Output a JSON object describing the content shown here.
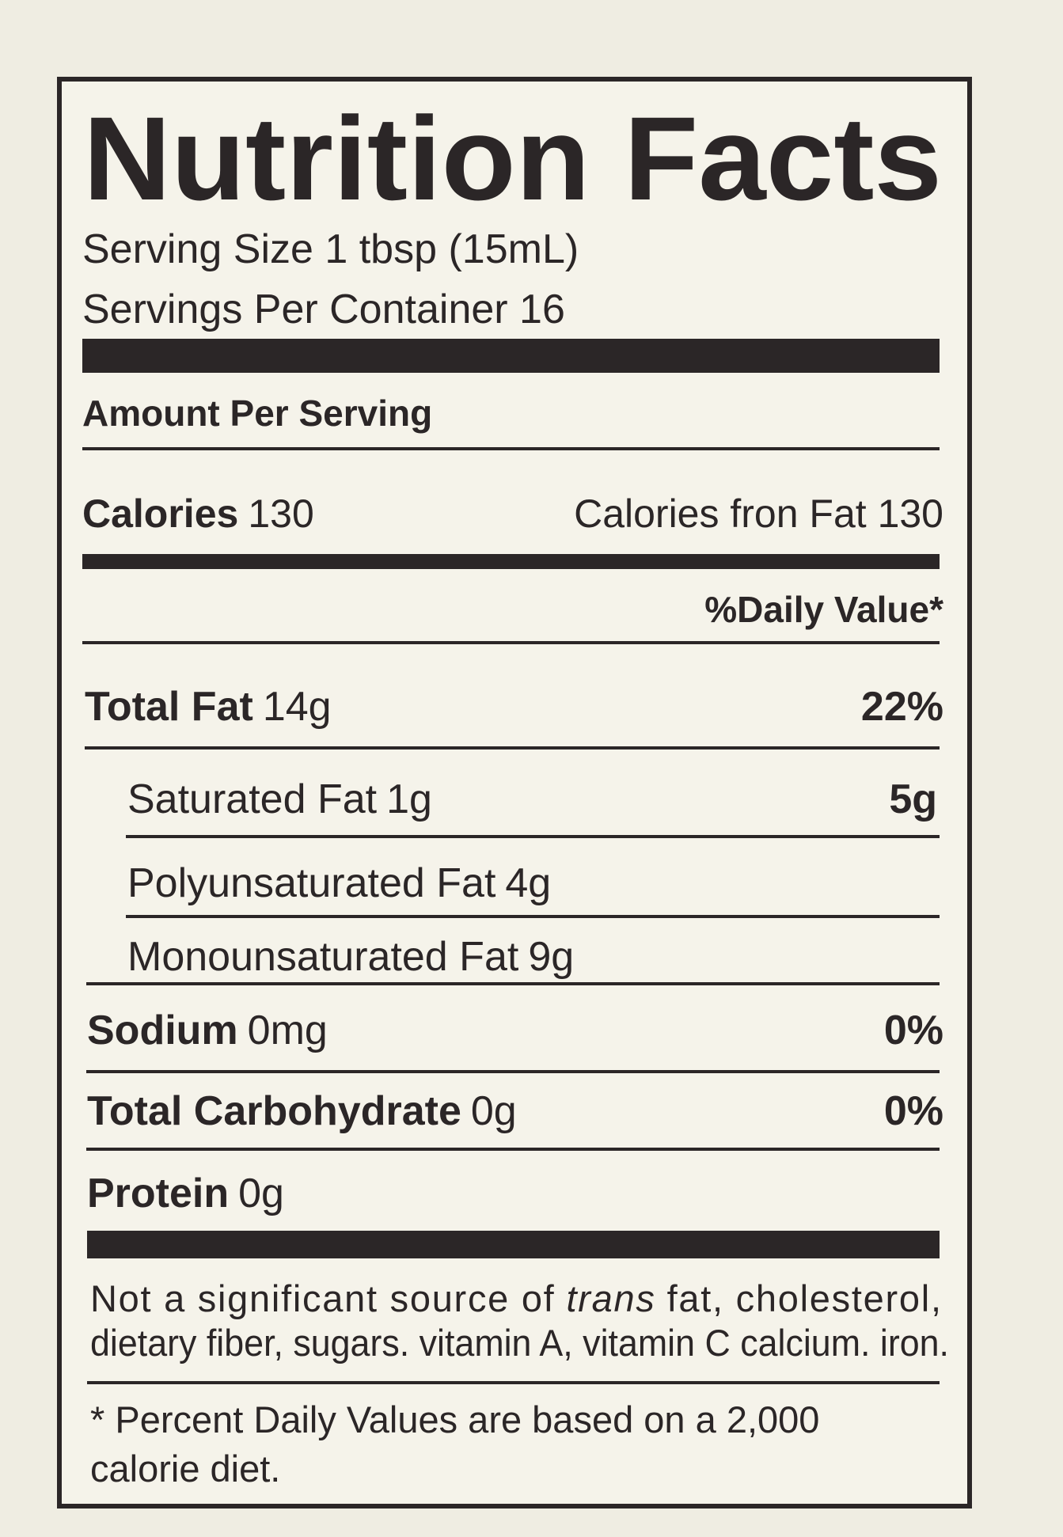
{
  "header": {
    "title": "Nutrition Facts",
    "serving_size": "Serving Size 1 tbsp (15mL)",
    "servings_per_container": "Servings Per Container 16"
  },
  "amount_per_serving": "Amount Per Serving",
  "calories": {
    "label": "Calories",
    "value": "130",
    "from_fat": "Calories fron Fat 130"
  },
  "daily_value_header": "%Daily Value*",
  "rows": [
    {
      "name": "Total Fat",
      "amount": "14g",
      "dv": "22%"
    },
    {
      "name": "Saturated Fat",
      "amount": "1g",
      "dv": "5g"
    },
    {
      "name": "Polyunsaturated Fat",
      "amount": "4g"
    },
    {
      "name": "Monounsaturated Fat",
      "amount": "9g"
    },
    {
      "name": "Sodium",
      "amount": "0mg",
      "dv": "0%"
    },
    {
      "name": "Total Carbohydrate",
      "amount": "0g",
      "dv": "0%"
    },
    {
      "name": "Protein",
      "amount": "0g"
    }
  ],
  "note": [
    "Not a significant source of",
    "trans",
    "fat, cholesterol,",
    "dietary fiber, sugars. vitamin A, vitamin C calcium. iron."
  ],
  "footnote": [
    "* Percent Daily Values are based on a 2,000",
    "calorie diet."
  ]
}
